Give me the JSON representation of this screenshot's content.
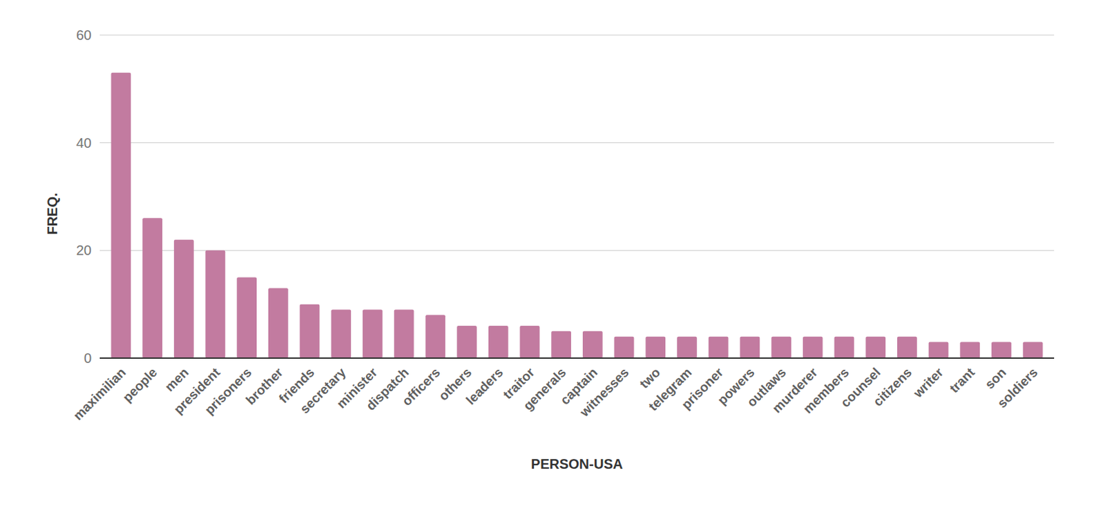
{
  "chart_data": {
    "type": "bar",
    "x_label": "PERSON-USA",
    "y_label": "FREQ.",
    "categories": [
      "maximilian",
      "people",
      "men",
      "president",
      "prisoners",
      "brother",
      "friends",
      "secretary",
      "minister",
      "dispatch",
      "officers",
      "others",
      "leaders",
      "traitor",
      "generals",
      "captain",
      "witnesses",
      "two",
      "telegram",
      "prisoner",
      "powers",
      "outlaws",
      "murderer",
      "members",
      "counsel",
      "citizens",
      "writer",
      "trant",
      "son",
      "soldiers"
    ],
    "values": [
      53,
      26,
      22,
      20,
      15,
      13,
      10,
      9,
      9,
      9,
      8,
      6,
      6,
      6,
      5,
      5,
      4,
      4,
      4,
      4,
      4,
      4,
      4,
      4,
      4,
      4,
      3,
      3,
      3,
      3
    ],
    "color": "#c27ba0",
    "ylim": [
      0,
      60
    ],
    "yticks": [
      0,
      20,
      40,
      60
    ],
    "grid": true
  }
}
